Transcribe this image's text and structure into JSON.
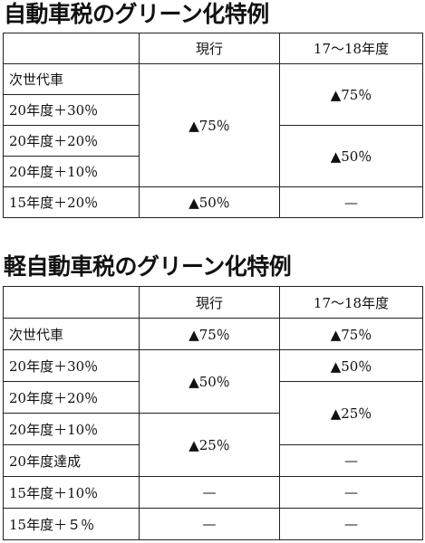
{
  "sections": [
    {
      "title": "自動車税のグリーン化特例",
      "header": [
        "",
        "現行",
        "17〜18年度"
      ],
      "rows": [
        "次世代車",
        "20年度＋30％",
        "20年度＋20％",
        "20年度＋10％",
        "15年度＋20％"
      ],
      "current": [
        "▲75％",
        "▲50％"
      ],
      "future": [
        "▲75％",
        "▲50％",
        "—"
      ]
    },
    {
      "title": "軽自動車税のグリーン化特例",
      "header": [
        "",
        "現行",
        "17〜18年度"
      ],
      "rows": [
        "次世代車",
        "20年度＋30％",
        "20年度＋20％",
        "20年度＋10％",
        "20年度達成",
        "15年度＋10％",
        "15年度＋５％"
      ],
      "current": [
        "▲75％",
        "▲50％",
        "▲25％",
        "—",
        "—"
      ],
      "future": [
        "▲75％",
        "▲50％",
        "▲25％",
        "—",
        "—",
        "—"
      ]
    }
  ]
}
